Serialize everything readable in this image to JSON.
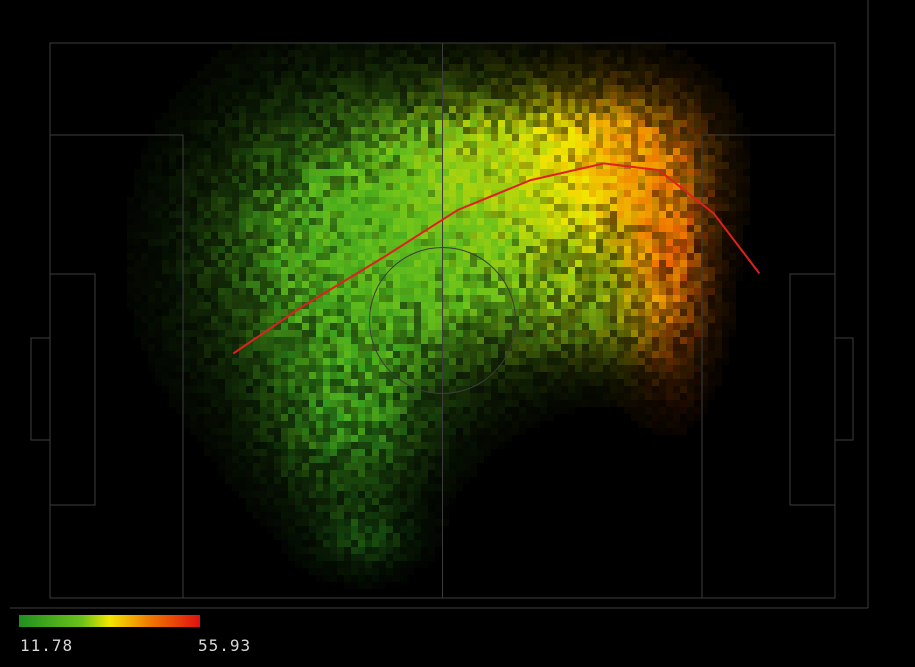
{
  "chart_data": {
    "type": "heatmap",
    "title": "",
    "xlabel": "",
    "ylabel": "",
    "background": "#000000",
    "pitch_line_color": "#3c3c3c",
    "colorscale": {
      "min": 11.78,
      "max": 55.93,
      "min_label": "11.78",
      "max_label": "55.93",
      "colors": [
        "#1f8f1f",
        "#6cc21a",
        "#f2e600",
        "#f07a00",
        "#e01010"
      ]
    },
    "trend_line": {
      "color": "#e02020",
      "points": [
        [
          0.255,
          0.53
        ],
        [
          0.33,
          0.46
        ],
        [
          0.42,
          0.385
        ],
        [
          0.5,
          0.315
        ],
        [
          0.58,
          0.27
        ],
        [
          0.66,
          0.245
        ],
        [
          0.72,
          0.255
        ],
        [
          0.78,
          0.32
        ],
        [
          0.83,
          0.41
        ]
      ]
    },
    "density_regions": [
      {
        "cx": 0.36,
        "cy": 0.38,
        "rx": 0.15,
        "ry": 0.24,
        "value": 18,
        "weight": 0.9
      },
      {
        "cx": 0.5,
        "cy": 0.35,
        "rx": 0.15,
        "ry": 0.2,
        "value": 22,
        "weight": 1.0
      },
      {
        "cx": 0.6,
        "cy": 0.24,
        "rx": 0.13,
        "ry": 0.13,
        "value": 32,
        "weight": 0.95
      },
      {
        "cx": 0.73,
        "cy": 0.22,
        "rx": 0.09,
        "ry": 0.12,
        "value": 44,
        "weight": 0.95
      },
      {
        "cx": 0.79,
        "cy": 0.4,
        "rx": 0.05,
        "ry": 0.18,
        "value": 48,
        "weight": 0.8
      },
      {
        "cx": 0.68,
        "cy": 0.47,
        "rx": 0.09,
        "ry": 0.1,
        "value": 28,
        "weight": 0.6
      },
      {
        "cx": 0.38,
        "cy": 0.68,
        "rx": 0.09,
        "ry": 0.14,
        "value": 16,
        "weight": 0.7
      },
      {
        "cx": 0.4,
        "cy": 0.89,
        "rx": 0.06,
        "ry": 0.06,
        "value": 14,
        "weight": 0.4
      }
    ]
  }
}
